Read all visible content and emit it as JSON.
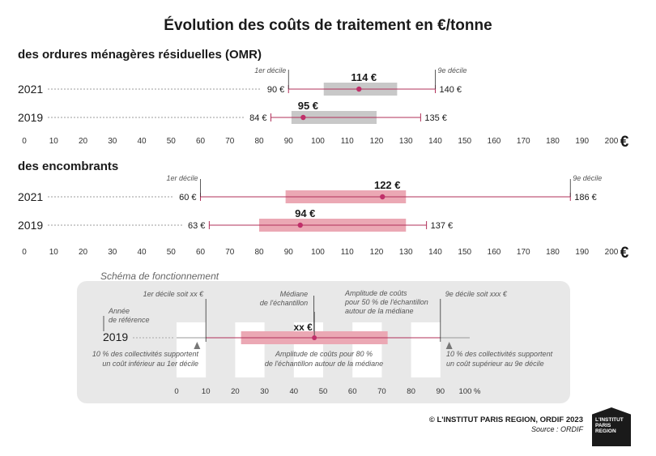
{
  "title": "Évolution des coûts de traitement en €/tonne",
  "currency_symbol": "€",
  "chart_data": [
    {
      "type": "range-bar",
      "title": "des ordures ménagères résiduelles (OMR)",
      "xlim": [
        0,
        200
      ],
      "xticks": [
        0,
        10,
        20,
        30,
        40,
        50,
        60,
        70,
        80,
        90,
        100,
        110,
        120,
        130,
        140,
        150,
        160,
        170,
        180,
        190,
        200
      ],
      "decile_labels": {
        "d1": "1er décile",
        "d9": "9e décile"
      },
      "series": [
        {
          "year": "2021",
          "d1": 90,
          "d1_label": "90 €",
          "q1": 102,
          "median": 114,
          "median_label": "114 €",
          "q3": 127,
          "d9": 140,
          "d9_label": "140 €"
        },
        {
          "year": "2019",
          "d1": 84,
          "d1_label": "84 €",
          "q1": 91,
          "median": 95,
          "median_label": "95 €",
          "q3": 120,
          "d9": 135,
          "d9_label": "135 €"
        }
      ]
    },
    {
      "type": "range-bar",
      "title": "des encombrants",
      "xlim": [
        0,
        200
      ],
      "xticks": [
        0,
        10,
        20,
        30,
        40,
        50,
        60,
        70,
        80,
        90,
        100,
        110,
        120,
        130,
        140,
        150,
        160,
        170,
        180,
        190,
        200
      ],
      "decile_labels": {
        "d1": "1er décile",
        "d9": "9e décile"
      },
      "series": [
        {
          "year": "2021",
          "d1": 60,
          "d1_label": "60 €",
          "q1": 89,
          "median": 122,
          "median_label": "122 €",
          "q3": 130,
          "d9": 186,
          "d9_label": "186 €"
        },
        {
          "year": "2019",
          "d1": 63,
          "d1_label": "63 €",
          "q1": 80,
          "median": 94,
          "median_label": "94 €",
          "q3": 130,
          "d9": 137,
          "d9_label": "137 €"
        }
      ]
    }
  ],
  "schema": {
    "title": "Schéma de fonctionnement",
    "year": "2019",
    "median_label": "xx €",
    "xticks": [
      0,
      10,
      20,
      30,
      40,
      50,
      60,
      70,
      80,
      90
    ],
    "xtick_last_label": "100 %",
    "d1": 10,
    "q1": 22,
    "median": 47,
    "q3": 72,
    "d9": 90,
    "label_d1": "1er décile soit xx €",
    "label_median": [
      "Médiane",
      "de l'échantillon"
    ],
    "label_amp50": [
      "Amplitude de coûts",
      "pour 50 % de l'échantillon",
      "autour de la médiane"
    ],
    "label_d9": "9e décile soit xxx €",
    "label_year": [
      "Année",
      "de référence"
    ],
    "label_left": [
      "10 % des collectivités supportent",
      "un coût inférieur au 1er décile"
    ],
    "label_amp80": [
      "Amplitude de coûts pour 80 %",
      "de l'échantillon autour de la médiane"
    ],
    "label_right": [
      "10 % des collectivités supportent",
      "un coût supérieur au 9e décile"
    ]
  },
  "credit": "© L'INSTITUT PARIS REGION, ORDIF 2023",
  "source": "Source : ORDIF",
  "logo": "L'INSTITUT PARIS REGION",
  "colors": {
    "grey_bar": "#c8c8c8",
    "pink_bar": "#eba8b4",
    "line": "#b0305a",
    "median": "#c0306a",
    "dots": "#bdbdbd",
    "schema_bg": "#e8e8e8"
  }
}
